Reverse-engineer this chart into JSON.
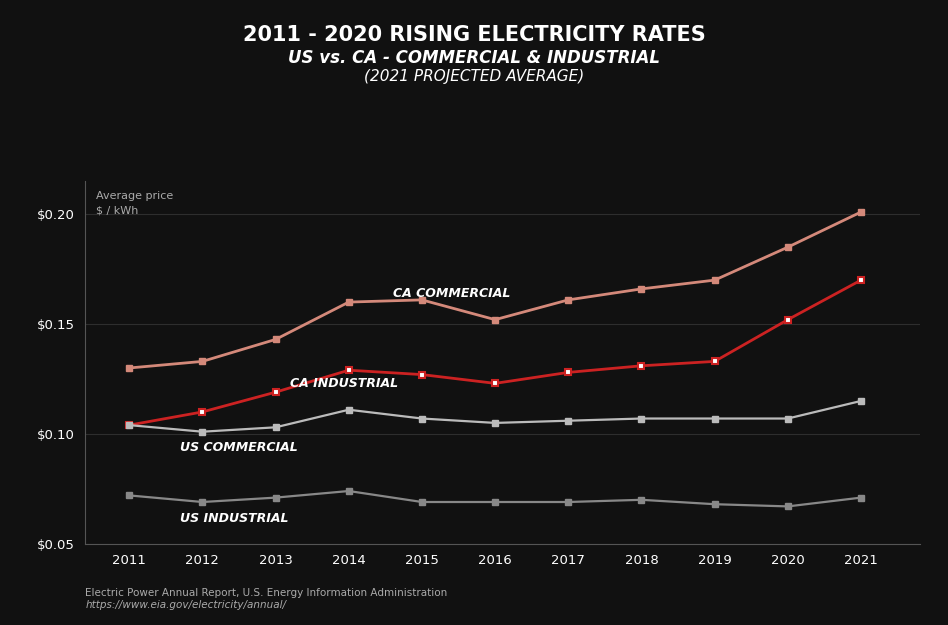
{
  "title1": "2011 - 2020 RISING ELECTRICITY RATES",
  "title2": "US vs. CA - COMMERCIAL & INDUSTRIAL",
  "title3": "(2021 PROJECTED AVERAGE)",
  "ylabel_line1": "Average price",
  "ylabel_line2": "$ / kWh",
  "source1": "Electric Power Annual Report, U.S. Energy Information Administration",
  "source2": "https://www.eia.gov/electricity/annual/",
  "years": [
    2011,
    2012,
    2013,
    2014,
    2015,
    2016,
    2017,
    2018,
    2019,
    2020,
    2021
  ],
  "ca_commercial": [
    0.13,
    0.133,
    0.143,
    0.16,
    0.161,
    0.152,
    0.161,
    0.166,
    0.17,
    0.185,
    0.201
  ],
  "ca_industrial": [
    0.104,
    0.11,
    0.119,
    0.129,
    0.127,
    0.123,
    0.128,
    0.131,
    0.133,
    0.152,
    0.17
  ],
  "us_commercial": [
    0.104,
    0.101,
    0.103,
    0.111,
    0.107,
    0.105,
    0.106,
    0.107,
    0.107,
    0.107,
    0.115
  ],
  "us_industrial": [
    0.072,
    0.069,
    0.071,
    0.074,
    0.069,
    0.069,
    0.069,
    0.07,
    0.068,
    0.067,
    0.071
  ],
  "background_color": "#111111",
  "text_color": "#ffffff",
  "ca_comm_color": "#d4897a",
  "ca_ind_color": "#cc2222",
  "us_comm_color": "#bbbbbb",
  "us_ind_color": "#888888",
  "ylim": [
    0.05,
    0.215
  ],
  "yticks": [
    0.05,
    0.1,
    0.15,
    0.2
  ],
  "xlim_left": 2010.4,
  "xlim_right": 2021.8
}
